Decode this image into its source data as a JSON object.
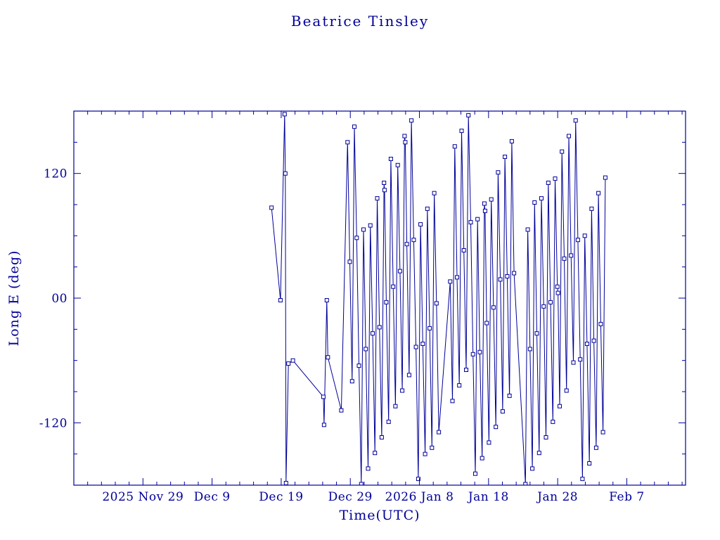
{
  "chart_data": {
    "type": "line",
    "title": "Beatrice Tinsley",
    "xlabel": "Time(UTC)",
    "ylabel": "Long E (deg)",
    "color": "#000099",
    "xlim": [
      0,
      88.5
    ],
    "ylim": [
      -180,
      180
    ],
    "x_origin_date": "2025-11-19",
    "x_minor_step": 2,
    "y_minor_step": 30,
    "marker": "open-square",
    "x_ticks": [
      {
        "v": 10,
        "label": "2025 Nov 29"
      },
      {
        "v": 20,
        "label": "Dec 9"
      },
      {
        "v": 30,
        "label": "Dec 19"
      },
      {
        "v": 40,
        "label": "Dec 29"
      },
      {
        "v": 50,
        "label": "2026 Jan 8"
      },
      {
        "v": 60,
        "label": "Jan 18"
      },
      {
        "v": 70,
        "label": "Jan 28"
      },
      {
        "v": 80,
        "label": "Feb 7"
      }
    ],
    "y_ticks": [
      {
        "v": 120,
        "label": "120"
      },
      {
        "v": 0,
        "label": "00"
      },
      {
        "v": -120,
        "label": "-120"
      }
    ],
    "points": [
      [
        28.6,
        87
      ],
      [
        29.9,
        -2
      ],
      [
        30.5,
        177
      ],
      [
        30.6,
        120
      ],
      [
        30.7,
        -178
      ],
      [
        31.05,
        -63
      ],
      [
        31.7,
        -60
      ],
      [
        36.1,
        -95
      ],
      [
        36.2,
        -122
      ],
      [
        36.6,
        -2
      ],
      [
        36.75,
        -57
      ],
      [
        38.7,
        -108
      ],
      [
        39.6,
        150
      ],
      [
        39.93,
        35
      ],
      [
        40.26,
        -80
      ],
      [
        40.59,
        165
      ],
      [
        40.92,
        58
      ],
      [
        41.25,
        -65
      ],
      [
        41.58,
        -179
      ],
      [
        41.91,
        66
      ],
      [
        42.24,
        -49
      ],
      [
        42.57,
        -164
      ],
      [
        42.9,
        70
      ],
      [
        43.23,
        -34
      ],
      [
        43.56,
        -149
      ],
      [
        43.89,
        96
      ],
      [
        44.22,
        -28
      ],
      [
        44.55,
        -134
      ],
      [
        44.88,
        111
      ],
      [
        44.95,
        104
      ],
      [
        45.21,
        -4
      ],
      [
        45.54,
        -119
      ],
      [
        45.87,
        134
      ],
      [
        46.2,
        11
      ],
      [
        46.53,
        -104
      ],
      [
        46.86,
        128
      ],
      [
        47.19,
        26
      ],
      [
        47.52,
        -89
      ],
      [
        47.85,
        156
      ],
      [
        47.95,
        150
      ],
      [
        48.18,
        52
      ],
      [
        48.51,
        -74
      ],
      [
        48.84,
        171
      ],
      [
        49.17,
        56
      ],
      [
        49.5,
        -47
      ],
      [
        49.83,
        -174
      ],
      [
        50.16,
        71
      ],
      [
        50.49,
        -44
      ],
      [
        50.82,
        -150
      ],
      [
        51.15,
        86
      ],
      [
        51.48,
        -29
      ],
      [
        51.81,
        -144
      ],
      [
        52.14,
        101
      ],
      [
        52.47,
        -5
      ],
      [
        52.8,
        -129
      ],
      [
        54.45,
        16
      ],
      [
        54.78,
        -99
      ],
      [
        55.11,
        146
      ],
      [
        55.44,
        20
      ],
      [
        55.77,
        -84
      ],
      [
        56.1,
        161
      ],
      [
        56.43,
        46
      ],
      [
        56.76,
        -69
      ],
      [
        57.09,
        176
      ],
      [
        57.42,
        73
      ],
      [
        57.75,
        -54
      ],
      [
        58.08,
        -169
      ],
      [
        58.41,
        76
      ],
      [
        58.74,
        -52
      ],
      [
        59.07,
        -154
      ],
      [
        59.4,
        91
      ],
      [
        59.5,
        84
      ],
      [
        59.73,
        -24
      ],
      [
        60.06,
        -139
      ],
      [
        60.39,
        95
      ],
      [
        60.72,
        -9
      ],
      [
        61.05,
        -124
      ],
      [
        61.38,
        121
      ],
      [
        61.71,
        18
      ],
      [
        62.04,
        -109
      ],
      [
        62.37,
        136
      ],
      [
        62.7,
        21
      ],
      [
        63.03,
        -94
      ],
      [
        63.36,
        151
      ],
      [
        63.69,
        24
      ],
      [
        65.34,
        -179
      ],
      [
        65.67,
        66
      ],
      [
        66,
        -49
      ],
      [
        66.33,
        -164
      ],
      [
        66.66,
        92
      ],
      [
        66.99,
        -34
      ],
      [
        67.32,
        -149
      ],
      [
        67.65,
        96
      ],
      [
        67.98,
        -8
      ],
      [
        68.31,
        -134
      ],
      [
        68.64,
        111
      ],
      [
        68.97,
        -4
      ],
      [
        69.3,
        -119
      ],
      [
        69.63,
        115
      ],
      [
        69.96,
        11
      ],
      [
        70.05,
        5
      ],
      [
        70.29,
        -104
      ],
      [
        70.62,
        141
      ],
      [
        70.95,
        38
      ],
      [
        71.28,
        -89
      ],
      [
        71.61,
        156
      ],
      [
        71.94,
        41
      ],
      [
        72.27,
        -62
      ],
      [
        72.6,
        171
      ],
      [
        72.93,
        56
      ],
      [
        73.26,
        -59
      ],
      [
        73.59,
        -174
      ],
      [
        73.92,
        60
      ],
      [
        74.25,
        -44
      ],
      [
        74.58,
        -159
      ],
      [
        74.91,
        86
      ],
      [
        75.24,
        -41
      ],
      [
        75.57,
        -144
      ],
      [
        75.9,
        101
      ],
      [
        76.23,
        -25
      ],
      [
        76.56,
        -129
      ],
      [
        76.89,
        116
      ]
    ]
  }
}
